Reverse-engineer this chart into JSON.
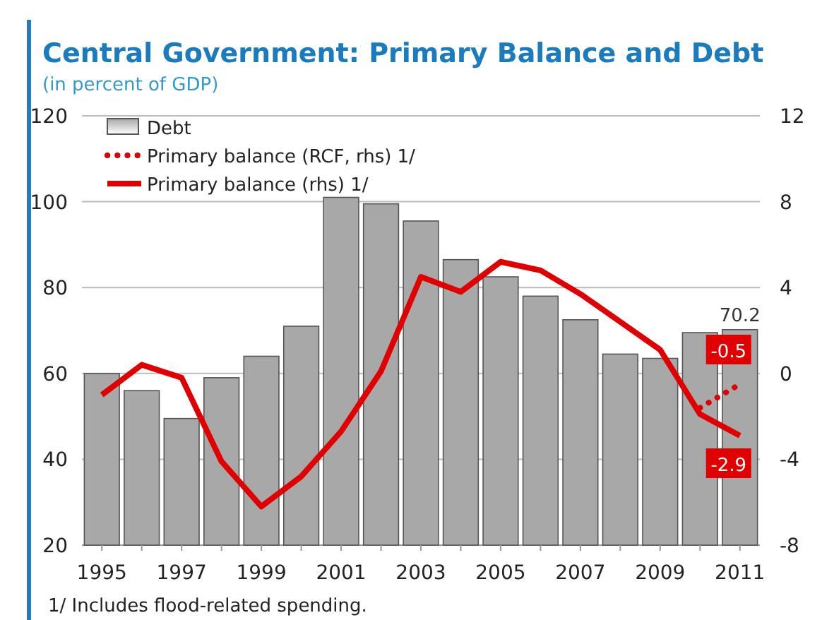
{
  "chart_data": {
    "type": "bar",
    "title": "Central Government: Primary Balance and Debt",
    "subtitle": "(in percent of GDP)",
    "categories": [
      "1995",
      null,
      "1997",
      null,
      "1999",
      null,
      "2001",
      null,
      "2003",
      null,
      "2005",
      null,
      "2007",
      null,
      "2009",
      null,
      "2011"
    ],
    "series": [
      {
        "name": "Debt",
        "color": "#a8a8a8",
        "values": [
          60,
          56,
          49.5,
          59,
          64,
          71,
          101,
          99.5,
          95.5,
          86.5,
          82.5,
          78,
          72.5,
          64.5,
          63.5,
          69.5,
          70.2
        ],
        "value_labels": [
          null,
          null,
          null,
          null,
          null,
          null,
          null,
          null,
          null,
          null,
          null,
          null,
          null,
          null,
          null,
          null,
          "70.2"
        ]
      },
      {
        "name": "Primary balance (RCF, rhs) 1/",
        "type": "line",
        "axis": "y2",
        "line_style": "dotted",
        "color": "#e00000",
        "values": [
          null,
          null,
          null,
          null,
          null,
          null,
          null,
          null,
          null,
          null,
          null,
          null,
          null,
          null,
          null,
          -1.6,
          -0.5
        ],
        "value_labels": [
          null,
          null,
          null,
          null,
          null,
          null,
          null,
          null,
          null,
          null,
          null,
          null,
          null,
          null,
          null,
          null,
          "-0.5"
        ]
      },
      {
        "name": "Primary balance (rhs) 1/",
        "type": "line",
        "axis": "y2",
        "line_style": "solid",
        "color": "#e00000",
        "values": [
          -1.0,
          0.4,
          -0.2,
          -4.1,
          -6.2,
          -4.8,
          -2.7,
          0.1,
          4.5,
          3.8,
          5.2,
          4.8,
          3.7,
          2.4,
          1.1,
          -1.9,
          -2.9
        ],
        "value_labels": [
          null,
          null,
          null,
          null,
          null,
          null,
          null,
          null,
          null,
          null,
          null,
          null,
          null,
          null,
          null,
          null,
          "-2.9"
        ]
      }
    ],
    "ylim": [
      20,
      120
    ],
    "yticks": [
      20,
      40,
      60,
      80,
      100,
      120
    ],
    "y2lim": [
      -8,
      12
    ],
    "y2ticks": [
      -8,
      -4,
      0,
      4,
      8,
      12
    ],
    "grid": "y",
    "legend": "top left",
    "marker": "none",
    "annotations": [
      "1/ Includes flood-related spending."
    ]
  }
}
